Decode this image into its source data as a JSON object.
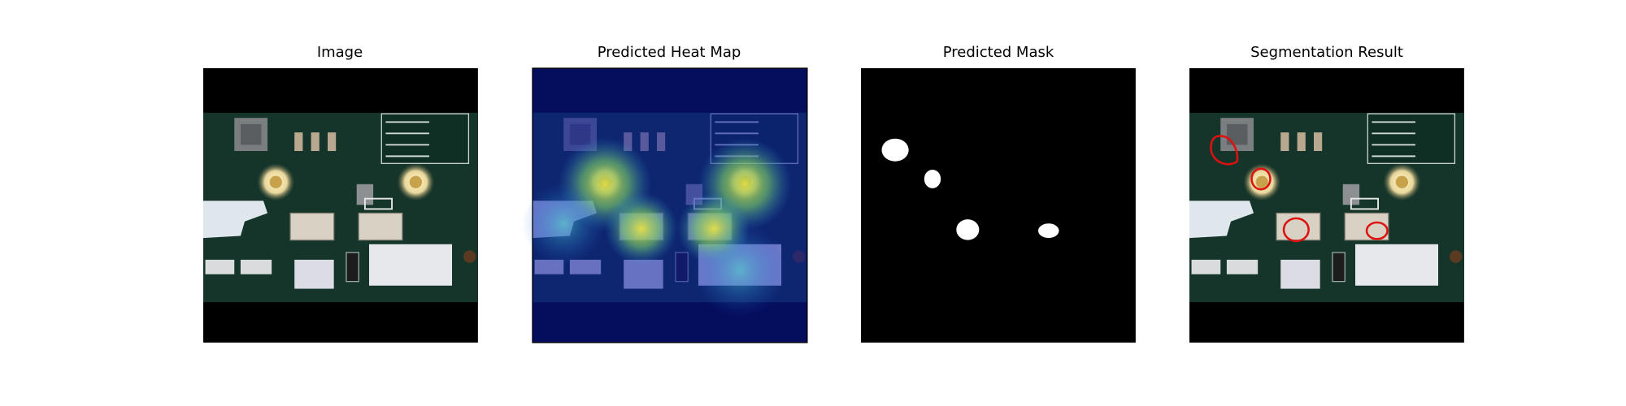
{
  "panels": [
    {
      "title": "Image"
    },
    {
      "title": "Predicted Heat Map"
    },
    {
      "title": "Predicted Mask"
    },
    {
      "title": "Segmentation Result"
    }
  ]
}
